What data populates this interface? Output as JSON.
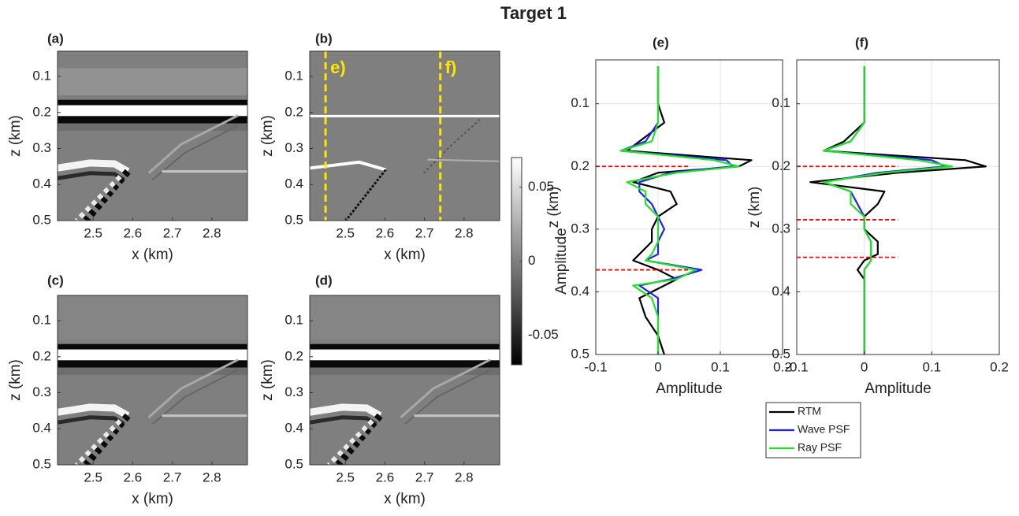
{
  "title": "Target 1",
  "chart_data": [
    {
      "type": "image",
      "panel": "(a)",
      "xlabel": "x (km)",
      "ylabel": "z (km)",
      "xlim": [
        2.41,
        2.89
      ],
      "ylim": [
        0.03,
        0.5
      ],
      "xticks": [
        2.5,
        2.6,
        2.7,
        2.8
      ],
      "yticks": [
        0.1,
        0.2,
        0.3,
        0.4,
        0.5
      ]
    },
    {
      "type": "image",
      "panel": "(b)",
      "xlabel": "x (km)",
      "ylabel": "z (km)",
      "xlim": [
        2.41,
        2.89
      ],
      "ylim": [
        0.03,
        0.5
      ],
      "xticks": [
        2.5,
        2.6,
        2.7,
        2.8
      ],
      "yticks": [
        0.1,
        0.2,
        0.3,
        0.4,
        0.5
      ],
      "vlines": [
        {
          "x": 2.45,
          "label": "e)"
        },
        {
          "x": 2.74,
          "label": "f)"
        }
      ],
      "vline_color": "#ffe600"
    },
    {
      "type": "image",
      "panel": "(c)",
      "xlabel": "x (km)",
      "ylabel": "z (km)",
      "xlim": [
        2.41,
        2.89
      ],
      "ylim": [
        0.03,
        0.5
      ],
      "xticks": [
        2.5,
        2.6,
        2.7,
        2.8
      ],
      "yticks": [
        0.1,
        0.2,
        0.3,
        0.4,
        0.5
      ]
    },
    {
      "type": "image",
      "panel": "(d)",
      "xlabel": "x (km)",
      "ylabel": "z (km)",
      "xlim": [
        2.41,
        2.89
      ],
      "ylim": [
        0.03,
        0.5
      ],
      "xticks": [
        2.5,
        2.6,
        2.7,
        2.8
      ],
      "yticks": [
        0.1,
        0.2,
        0.3,
        0.4,
        0.5
      ]
    },
    {
      "type": "colorbar",
      "label": "Amplitude",
      "clim": [
        -0.07,
        0.07
      ],
      "cticks": [
        0.05,
        0,
        -0.05
      ]
    },
    {
      "type": "line",
      "panel": "(e)",
      "xlabel": "Amplitude",
      "ylabel": "z (km)",
      "xlim": [
        -0.1,
        0.2
      ],
      "ylim": [
        0.03,
        0.5
      ],
      "xticks": [
        -0.1,
        0,
        0.1,
        0.2
      ],
      "yticks": [
        0.1,
        0.2,
        0.3,
        0.4,
        0.5
      ],
      "grid": true,
      "z": [
        0.04,
        0.1,
        0.13,
        0.16,
        0.175,
        0.19,
        0.2,
        0.21,
        0.225,
        0.24,
        0.26,
        0.28,
        0.3,
        0.32,
        0.34,
        0.35,
        0.365,
        0.38,
        0.39,
        0.41,
        0.44,
        0.47,
        0.5
      ],
      "series": [
        {
          "name": "RTM",
          "color": "#000000",
          "values": [
            0,
            0,
            0.01,
            -0.03,
            -0.05,
            0.15,
            0.13,
            0,
            -0.04,
            0.02,
            0.03,
            0,
            -0.01,
            -0.01,
            -0.03,
            -0.04,
            0,
            0.03,
            0.01,
            -0.03,
            -0.02,
            0,
            0.01
          ]
        },
        {
          "name": "Wave PSF",
          "color": "#1f1fff",
          "values": [
            0,
            0,
            0,
            -0.02,
            -0.06,
            0.11,
            0.12,
            0.02,
            -0.03,
            -0.03,
            -0.01,
            0,
            0.01,
            0,
            0,
            -0.02,
            0.07,
            0.02,
            -0.03,
            0,
            0,
            0,
            0
          ]
        },
        {
          "name": "Ray PSF",
          "color": "#22e322",
          "values": [
            0,
            0,
            0,
            -0.01,
            -0.06,
            0.09,
            0.13,
            0.03,
            -0.05,
            -0.02,
            -0.02,
            0,
            0,
            0,
            -0.01,
            -0.02,
            0.06,
            0.03,
            -0.04,
            -0.01,
            0,
            0,
            0
          ]
        }
      ],
      "hlines": [
        0.2,
        0.365
      ],
      "hline_color": "#ff0000"
    },
    {
      "type": "line",
      "panel": "(f)",
      "xlabel": "Amplitude",
      "ylabel": "z (km)",
      "xlim": [
        -0.1,
        0.2
      ],
      "ylim": [
        0.03,
        0.5
      ],
      "xticks": [
        -0.1,
        0,
        0.1,
        0.2
      ],
      "yticks": [
        0.1,
        0.2,
        0.3,
        0.4,
        0.5
      ],
      "grid": true,
      "legend": "bottom-left",
      "z": [
        0.04,
        0.1,
        0.13,
        0.16,
        0.175,
        0.19,
        0.2,
        0.21,
        0.225,
        0.24,
        0.26,
        0.28,
        0.3,
        0.32,
        0.34,
        0.35,
        0.365,
        0.38,
        0.39,
        0.41,
        0.44,
        0.47,
        0.5
      ],
      "series": [
        {
          "name": "RTM",
          "color": "#000000",
          "values": [
            0,
            0,
            0,
            -0.03,
            -0.06,
            0.15,
            0.18,
            0.05,
            -0.08,
            0.03,
            0.02,
            0,
            0,
            0.02,
            0.02,
            0,
            -0.01,
            0,
            0,
            0,
            0,
            0,
            0
          ]
        },
        {
          "name": "Wave PSF",
          "color": "#1f1fff",
          "values": [
            0,
            0,
            0,
            -0.02,
            -0.06,
            0.1,
            0.12,
            0.02,
            -0.06,
            -0.02,
            -0.01,
            0,
            0,
            0.01,
            0.01,
            0.01,
            0,
            0,
            0,
            0,
            0,
            0,
            0
          ]
        },
        {
          "name": "Ray PSF",
          "color": "#22e322",
          "values": [
            0,
            0,
            0,
            -0.02,
            -0.06,
            0.08,
            0.13,
            0.03,
            -0.06,
            -0.02,
            -0.02,
            0,
            0,
            0.01,
            0.01,
            0.01,
            0,
            0,
            0,
            0,
            0,
            0,
            0
          ]
        }
      ],
      "hlines": [
        0.2,
        0.285,
        0.345
      ],
      "hline_color": "#ff0000"
    }
  ]
}
